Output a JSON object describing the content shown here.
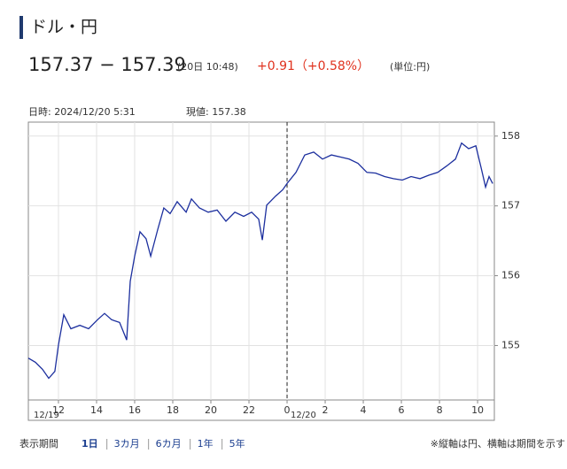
{
  "header": {
    "title": "ドル・円",
    "bid_ask": "157.37 − 157.39",
    "time": "(20日 10:48)",
    "change": "+0.91（+0.58%）",
    "unit": "(単位:円)"
  },
  "chart_data": {
    "type": "line",
    "info": [
      "日時: 2024/12/20  5:31",
      "現値: 157.38"
    ],
    "date_labels": [
      "12/19",
      "12/20"
    ],
    "color": "#1c2f9e",
    "x": [
      10.42,
      10.79,
      11.16,
      11.49,
      11.81,
      12.0,
      12.28,
      12.65,
      13.12,
      13.58,
      14.05,
      14.42,
      14.79,
      15.21,
      15.58,
      15.77,
      16.0,
      16.28,
      16.6,
      16.84,
      17.21,
      17.53,
      17.86,
      18.23,
      18.7,
      18.98,
      19.4,
      19.86,
      20.33,
      20.79,
      21.26,
      21.72,
      22.14,
      22.51,
      22.7,
      22.93,
      23.4,
      23.77,
      24.0,
      24.47,
      24.93,
      25.4,
      25.86,
      26.33,
      26.79,
      27.26,
      27.72,
      28.19,
      28.65,
      29.12,
      29.58,
      30.05,
      30.51,
      30.98,
      31.44,
      31.91,
      32.37,
      32.84,
      33.16,
      33.53,
      33.91,
      34.19,
      34.42,
      34.6,
      34.79
    ],
    "values": [
      154.82,
      154.76,
      154.66,
      154.53,
      154.63,
      155.01,
      155.44,
      155.24,
      155.29,
      155.24,
      155.37,
      155.46,
      155.37,
      155.33,
      155.08,
      155.92,
      156.28,
      156.63,
      156.53,
      156.28,
      156.66,
      156.97,
      156.89,
      157.06,
      156.91,
      157.1,
      156.97,
      156.91,
      156.94,
      156.78,
      156.91,
      156.85,
      156.91,
      156.81,
      156.51,
      157.01,
      157.14,
      157.23,
      157.32,
      157.48,
      157.73,
      157.77,
      157.67,
      157.73,
      157.7,
      157.67,
      157.61,
      157.48,
      157.47,
      157.42,
      157.39,
      157.37,
      157.42,
      157.39,
      157.44,
      157.48,
      157.57,
      157.67,
      157.9,
      157.82,
      157.86,
      157.54,
      157.27,
      157.42,
      157.32
    ],
    "xlim": [
      10.42,
      34.88
    ],
    "xticks": [
      12,
      14,
      16,
      18,
      20,
      22,
      {
        "value": 24,
        "label": "0"
      },
      {
        "value": 26,
        "label": "2"
      },
      {
        "value": 28,
        "label": "4"
      },
      {
        "value": 30,
        "label": "6"
      },
      {
        "value": 32,
        "label": "8"
      },
      {
        "value": 34,
        "label": "10"
      }
    ],
    "ylim": [
      154.22,
      158.2
    ],
    "yticks": [
      155,
      156,
      157,
      158
    ],
    "grid": true
  },
  "footer": {
    "period_label": "表示期間",
    "periods": [
      "1日",
      "3カ月",
      "6カ月",
      "1年",
      "5年"
    ],
    "selected": 0,
    "note": "※縦軸は円、横軸は期間を示す"
  }
}
